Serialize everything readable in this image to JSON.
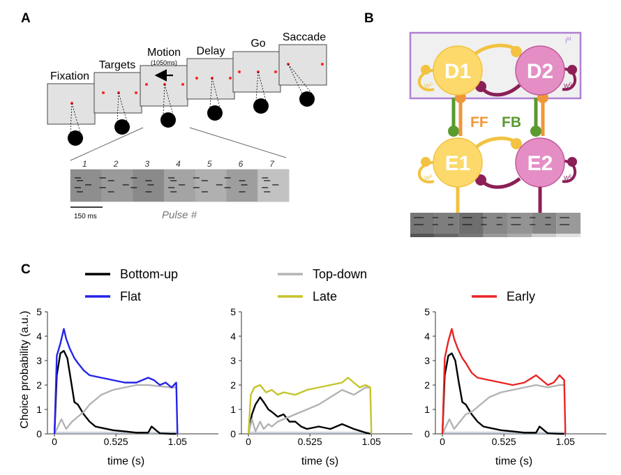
{
  "panels": {
    "a": "A",
    "b": "B",
    "c": "C"
  },
  "task": {
    "epochs": [
      "Fixation",
      "Targets",
      "Motion",
      "Delay",
      "Go",
      "Saccade"
    ],
    "motion_duration": "(1050ms)",
    "pulse_numbers": [
      "1",
      "2",
      "3",
      "4",
      "5",
      "6",
      "7"
    ],
    "pulse_axis_label": "Pulse #",
    "scale_bar_label": "150 ms",
    "colors": {
      "screen": "#e2e2e2",
      "fixation": "#ff2222",
      "head": "#000000"
    }
  },
  "network": {
    "nodes": {
      "d1": "D1",
      "d2": "D2",
      "e1": "E1",
      "e2": "E2"
    },
    "labels": {
      "ff": "FF",
      "fb": "FB",
      "im": "I",
      "im_sup": "M",
      "wd": "W",
      "wd_sup": "D",
      "we": "W",
      "we_sup": "E"
    },
    "colors": {
      "node_1": "#fcd96a",
      "node_2": "#e48ec5",
      "pool_1_edge": "#f2c240",
      "pool_2_edge": "#8c1f57",
      "ff": "#f0963a",
      "fb": "#5a9a2f",
      "box": "#b07fd3"
    }
  },
  "legend": [
    {
      "label": "Bottom-up",
      "color": "#000000"
    },
    {
      "label": "Top-down",
      "color": "#b3b3b3"
    },
    {
      "label": "Flat",
      "color": "#2424e8"
    },
    {
      "label": "Late",
      "color": "#c5c32c"
    },
    {
      "label": "Early",
      "color": "#ea2424"
    }
  ],
  "chart_data": [
    {
      "type": "line",
      "xlabel": "time (s)",
      "ylabel": "Choice probability (a.u.)",
      "xticks": [
        "0",
        "0.525",
        "1.05"
      ],
      "yticks": [
        "0",
        "1",
        "2",
        "3",
        "4",
        "5"
      ],
      "xlim": [
        -0.06,
        1.4
      ],
      "ylim": [
        0,
        5
      ],
      "series": [
        {
          "name": "Bottom-up",
          "color": "#000000",
          "x": [
            0,
            0.02,
            0.05,
            0.08,
            0.11,
            0.14,
            0.17,
            0.2,
            0.25,
            0.3,
            0.35,
            0.4,
            0.5,
            0.6,
            0.7,
            0.8,
            0.83,
            0.9,
            1.0,
            1.04
          ],
          "y": [
            0,
            2.4,
            3.3,
            3.4,
            3.1,
            2.2,
            1.3,
            1.2,
            0.8,
            0.5,
            0.3,
            0.25,
            0.15,
            0.1,
            0.05,
            0.05,
            0.3,
            0.02,
            0,
            0
          ]
        },
        {
          "name": "Top-down",
          "color": "#b3b3b3",
          "x": [
            0,
            0.03,
            0.06,
            0.1,
            0.15,
            0.2,
            0.25,
            0.3,
            0.4,
            0.5,
            0.6,
            0.7,
            0.8,
            0.9,
            1.0,
            1.04
          ],
          "y": [
            0,
            0.3,
            0.6,
            0.2,
            0.5,
            0.7,
            0.9,
            1.2,
            1.6,
            1.8,
            1.9,
            2.0,
            2.0,
            1.95,
            1.9,
            1.9
          ]
        },
        {
          "name": "Flat",
          "color": "#2424e8",
          "x": [
            0,
            0.02,
            0.05,
            0.08,
            0.1,
            0.13,
            0.17,
            0.2,
            0.25,
            0.3,
            0.4,
            0.5,
            0.6,
            0.7,
            0.8,
            0.85,
            0.9,
            0.95,
            1.0,
            1.04,
            1.05
          ],
          "y": [
            0,
            3.2,
            3.7,
            4.3,
            3.9,
            3.5,
            3.1,
            2.9,
            2.6,
            2.4,
            2.3,
            2.2,
            2.1,
            2.1,
            2.3,
            2.2,
            2.0,
            2.1,
            1.9,
            2.1,
            0
          ]
        }
      ]
    },
    {
      "type": "line",
      "xlabel": "time (s)",
      "ylabel": "",
      "xticks": [
        "0",
        "0.525",
        "1.05"
      ],
      "yticks": [
        "0",
        "1",
        "2",
        "3",
        "4",
        "5"
      ],
      "xlim": [
        -0.06,
        1.4
      ],
      "ylim": [
        0,
        5
      ],
      "series": [
        {
          "name": "Bottom-up",
          "color": "#000000",
          "x": [
            0,
            0.03,
            0.06,
            0.1,
            0.13,
            0.17,
            0.2,
            0.25,
            0.3,
            0.35,
            0.4,
            0.45,
            0.5,
            0.6,
            0.7,
            0.8,
            0.9,
            1.0,
            1.04
          ],
          "y": [
            0,
            0.8,
            1.2,
            1.5,
            1.3,
            1.0,
            0.9,
            0.7,
            0.8,
            0.5,
            0.5,
            0.3,
            0.2,
            0.3,
            0.2,
            0.4,
            0.2,
            0.05,
            0
          ]
        },
        {
          "name": "Top-down",
          "color": "#b3b3b3",
          "x": [
            0,
            0.03,
            0.06,
            0.1,
            0.13,
            0.17,
            0.2,
            0.25,
            0.3,
            0.4,
            0.5,
            0.6,
            0.7,
            0.8,
            0.9,
            1.0,
            1.04
          ],
          "y": [
            0,
            0.6,
            0.1,
            0.5,
            0.2,
            0.4,
            0.3,
            0.5,
            0.6,
            0.8,
            1.0,
            1.2,
            1.5,
            1.8,
            1.6,
            1.9,
            1.9
          ]
        },
        {
          "name": "Late",
          "color": "#c5c32c",
          "x": [
            0,
            0.02,
            0.05,
            0.1,
            0.15,
            0.2,
            0.25,
            0.3,
            0.4,
            0.5,
            0.6,
            0.7,
            0.8,
            0.85,
            0.9,
            0.95,
            1.0,
            1.04,
            1.05
          ],
          "y": [
            0,
            1.6,
            1.9,
            2.0,
            1.7,
            1.8,
            1.6,
            1.7,
            1.6,
            1.8,
            1.9,
            2.0,
            2.1,
            2.3,
            2.1,
            1.9,
            2.0,
            1.9,
            0
          ]
        }
      ]
    },
    {
      "type": "line",
      "xlabel": "time (s)",
      "ylabel": "",
      "xticks": [
        "0",
        "0.525",
        "1.05"
      ],
      "yticks": [
        "0",
        "1",
        "2",
        "3",
        "4",
        "5"
      ],
      "xlim": [
        -0.06,
        1.4
      ],
      "ylim": [
        0,
        5
      ],
      "series": [
        {
          "name": "Bottom-up",
          "color": "#000000",
          "x": [
            0,
            0.02,
            0.05,
            0.08,
            0.11,
            0.14,
            0.17,
            0.2,
            0.25,
            0.3,
            0.35,
            0.4,
            0.5,
            0.6,
            0.7,
            0.8,
            0.83,
            0.9,
            1.0,
            1.04
          ],
          "y": [
            0,
            2.4,
            3.2,
            3.3,
            3.0,
            2.1,
            1.3,
            1.2,
            0.8,
            0.5,
            0.3,
            0.25,
            0.15,
            0.1,
            0.05,
            0.05,
            0.3,
            0.02,
            0,
            0
          ]
        },
        {
          "name": "Top-down",
          "color": "#b3b3b3",
          "x": [
            0,
            0.03,
            0.06,
            0.1,
            0.15,
            0.2,
            0.25,
            0.3,
            0.4,
            0.5,
            0.6,
            0.7,
            0.8,
            0.9,
            1.0,
            1.04
          ],
          "y": [
            0,
            0.3,
            0.6,
            0.2,
            0.5,
            0.8,
            0.9,
            1.1,
            1.5,
            1.7,
            1.8,
            1.9,
            2.0,
            1.9,
            2.0,
            2.0
          ]
        },
        {
          "name": "Early",
          "color": "#ea2424",
          "x": [
            0,
            0.02,
            0.05,
            0.08,
            0.1,
            0.13,
            0.17,
            0.2,
            0.25,
            0.3,
            0.4,
            0.5,
            0.6,
            0.7,
            0.8,
            0.85,
            0.9,
            0.95,
            1.0,
            1.04,
            1.05
          ],
          "y": [
            0,
            3.1,
            3.8,
            4.3,
            3.9,
            3.5,
            3.1,
            2.9,
            2.5,
            2.3,
            2.2,
            2.1,
            2.0,
            2.1,
            2.4,
            2.2,
            2.0,
            2.1,
            2.4,
            2.2,
            0
          ]
        }
      ]
    }
  ]
}
